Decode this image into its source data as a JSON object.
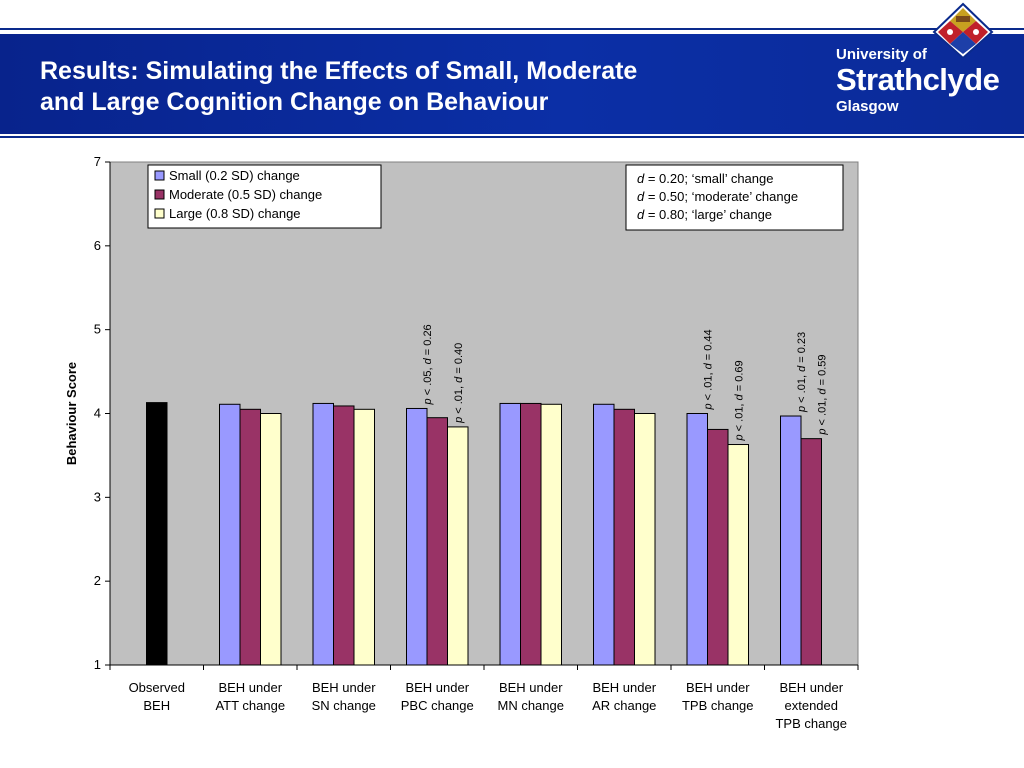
{
  "slide": {
    "title_line1": "Results: Simulating the Effects of Small, Moderate",
    "title_line2": "and Large Cognition Change on Behaviour"
  },
  "logo": {
    "line1": "University of",
    "line2": "Strathclyde",
    "line3": "Glasgow"
  },
  "colors": {
    "header_band": "#0b2fa6",
    "plot_bg": "#c0c0c0",
    "observed": "#000000",
    "small": "#9999ff",
    "moderate": "#993366",
    "large": "#ffffcc"
  },
  "chart_data": {
    "type": "bar",
    "ylabel": "Behaviour Score",
    "xlabel": "",
    "ylim": [
      1,
      7
    ],
    "yticks": [
      1,
      2,
      3,
      4,
      5,
      6,
      7
    ],
    "grid": false,
    "legend_position": "top-left",
    "categories": [
      [
        "Observed",
        "BEH"
      ],
      [
        "BEH under",
        "ATT change"
      ],
      [
        "BEH under",
        "SN change"
      ],
      [
        "BEH under",
        "PBC change"
      ],
      [
        "BEH under",
        "MN change"
      ],
      [
        "BEH under",
        "AR change"
      ],
      [
        "BEH under",
        "TPB change"
      ],
      [
        "BEH under",
        "extended",
        "TPB change"
      ]
    ],
    "observed": {
      "category_index": 0,
      "value": 4.13
    },
    "series": [
      {
        "name": "Small (0.2 SD) change",
        "values": [
          null,
          4.11,
          4.12,
          4.06,
          4.12,
          4.11,
          4.0,
          3.97
        ]
      },
      {
        "name": "Moderate (0.5 SD) change",
        "values": [
          null,
          4.05,
          4.09,
          3.95,
          4.12,
          4.05,
          3.81,
          3.7
        ]
      },
      {
        "name": "Large (0.8 SD) change",
        "values": [
          null,
          4.0,
          4.05,
          3.84,
          4.11,
          4.0,
          3.63,
          null
        ]
      }
    ],
    "annotations": [
      {
        "category_index": 3,
        "series_index": 0,
        "text": "p < .05, d = 0.26"
      },
      {
        "category_index": 3,
        "series_index": 2,
        "text": "p < .01, d = 0.40"
      },
      {
        "category_index": 6,
        "series_index": 0,
        "text": "p < .01, d = 0.44"
      },
      {
        "category_index": 6,
        "series_index": 2,
        "text": "p < .01, d = 0.69"
      },
      {
        "category_index": 7,
        "series_index": 0,
        "text": "p < .01, d = 0.23"
      },
      {
        "category_index": 7,
        "series_index": 1,
        "text": "p < .01, d = 0.59"
      }
    ],
    "effect_size_box": [
      {
        "symbol": "d",
        "text": " = 0.20; ‘small’ change"
      },
      {
        "symbol": "d",
        "text": " = 0.50; ‘moderate’ change"
      },
      {
        "symbol": "d",
        "text": " = 0.80; ‘large’ change"
      }
    ]
  }
}
